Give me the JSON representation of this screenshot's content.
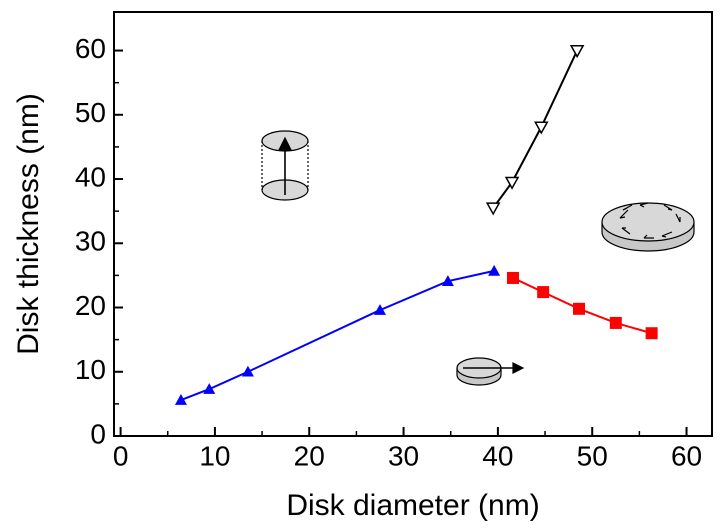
{
  "chart_data": {
    "type": "line",
    "x_label": "Disk diameter (nm)",
    "y_label": "Disk thickness  (nm)",
    "xlim": [
      -0.7,
      62.7
    ],
    "ylim": [
      0,
      66
    ],
    "xticks": [
      0,
      10,
      20,
      30,
      40,
      50,
      60
    ],
    "yticks": [
      0,
      10,
      20,
      30,
      40,
      50,
      60
    ],
    "minor_xticks": [
      5,
      15,
      25,
      35,
      45,
      55
    ],
    "minor_yticks": [
      5,
      15,
      25,
      35,
      45,
      55
    ],
    "series": [
      {
        "color": "#0000ff",
        "marker": "triangle-up",
        "x": [
          6.4,
          9.4,
          13.5,
          27.5,
          34.7,
          39.6
        ],
        "values": [
          5.6,
          7.3,
          10.0,
          19.6,
          24.1,
          25.7
        ]
      },
      {
        "color": "#ff0000",
        "marker": "square",
        "x": [
          41.6,
          44.8,
          48.6,
          52.5,
          56.3
        ],
        "values": [
          24.6,
          22.4,
          19.8,
          17.6,
          16.0
        ]
      },
      {
        "color": "#000000",
        "marker": "triangle-down",
        "x": [
          39.5,
          41.5,
          44.6,
          48.4
        ],
        "values": [
          35.5,
          39.5,
          48.1,
          60.0
        ]
      }
    ]
  }
}
